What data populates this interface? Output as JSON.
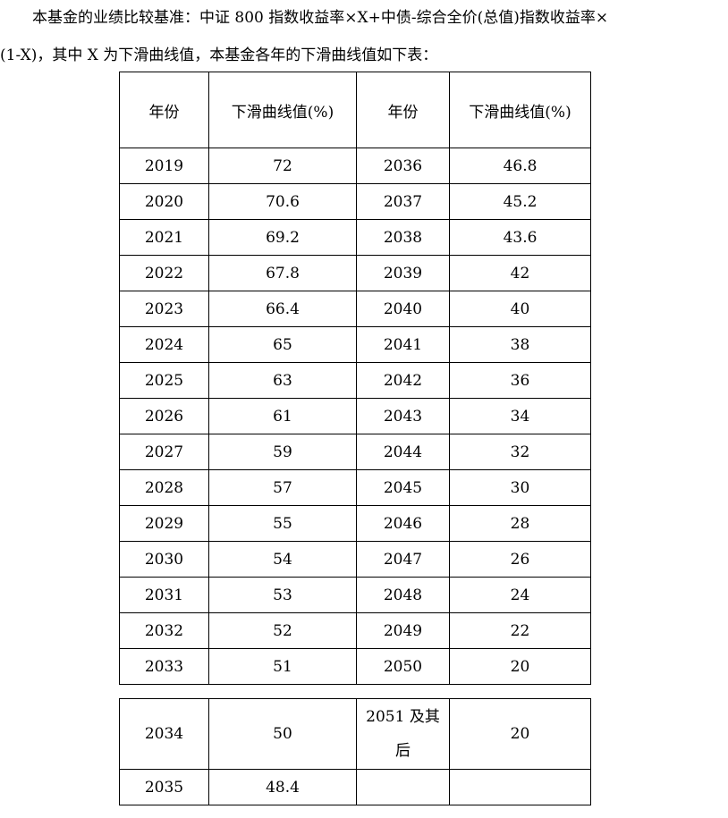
{
  "intro": {
    "line1": "本基金的业绩比较基准：中证 800 指数收益率×X+中债-综合全价(总值)指数收益率×",
    "line2": "(1-X)，其中 X 为下滑曲线值，本基金各年的下滑曲线值如下表："
  },
  "table": {
    "headers": [
      "年份",
      "下滑曲线值(%)",
      "年份",
      "下滑曲线值(%)"
    ],
    "rows": [
      [
        "2019",
        "72",
        "2036",
        "46.8"
      ],
      [
        "2020",
        "70.6",
        "2037",
        "45.2"
      ],
      [
        "2021",
        "69.2",
        "2038",
        "43.6"
      ],
      [
        "2022",
        "67.8",
        "2039",
        "42"
      ],
      [
        "2023",
        "66.4",
        "2040",
        "40"
      ],
      [
        "2024",
        "65",
        "2041",
        "38"
      ],
      [
        "2025",
        "63",
        "2042",
        "36"
      ],
      [
        "2026",
        "61",
        "2043",
        "34"
      ],
      [
        "2027",
        "59",
        "2044",
        "32"
      ],
      [
        "2028",
        "57",
        "2045",
        "30"
      ],
      [
        "2029",
        "55",
        "2046",
        "28"
      ],
      [
        "2030",
        "54",
        "2047",
        "26"
      ],
      [
        "2031",
        "53",
        "2048",
        "24"
      ],
      [
        "2032",
        "52",
        "2049",
        "22"
      ],
      [
        "2033",
        "51",
        "2050",
        "20"
      ]
    ]
  },
  "table_tail": {
    "row1": {
      "year": "2034",
      "value": "50",
      "year2_part1": "2051 及其",
      "year2_part2": "后",
      "value2": "20"
    },
    "row2": {
      "year": "2035",
      "value": "48.4",
      "year2": "",
      "value2": ""
    }
  }
}
